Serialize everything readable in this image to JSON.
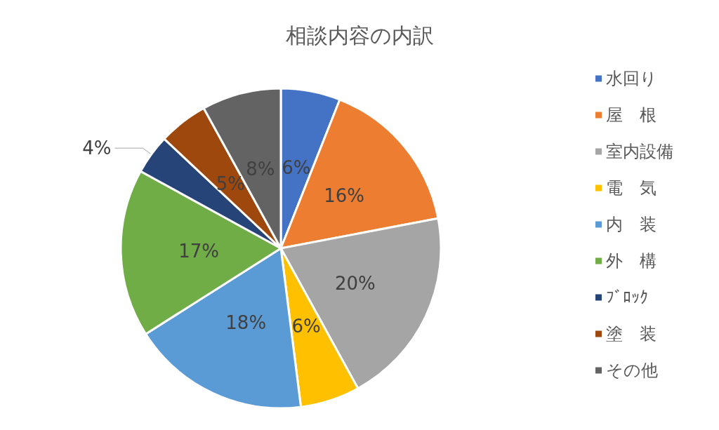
{
  "chart_data": {
    "type": "pie",
    "title": "相談内容の内訳",
    "categories": [
      "水回り",
      "屋　根",
      "室内設備",
      "電　気",
      "内　装",
      "外　構",
      "ﾌﾞﾛｯｸ",
      "塗　装",
      "その他"
    ],
    "values": [
      6,
      16,
      20,
      6,
      18,
      17,
      4,
      5,
      8
    ],
    "colors": [
      "#4472c4",
      "#ed7d31",
      "#a5a5a5",
      "#ffc000",
      "#5b9bd5",
      "#70ad47",
      "#264478",
      "#9e480e",
      "#636363"
    ],
    "value_labels": [
      "6%",
      "16%",
      "20%",
      "6%",
      "18%",
      "17%",
      "4%",
      "5%",
      "8%"
    ],
    "legend": "right"
  }
}
